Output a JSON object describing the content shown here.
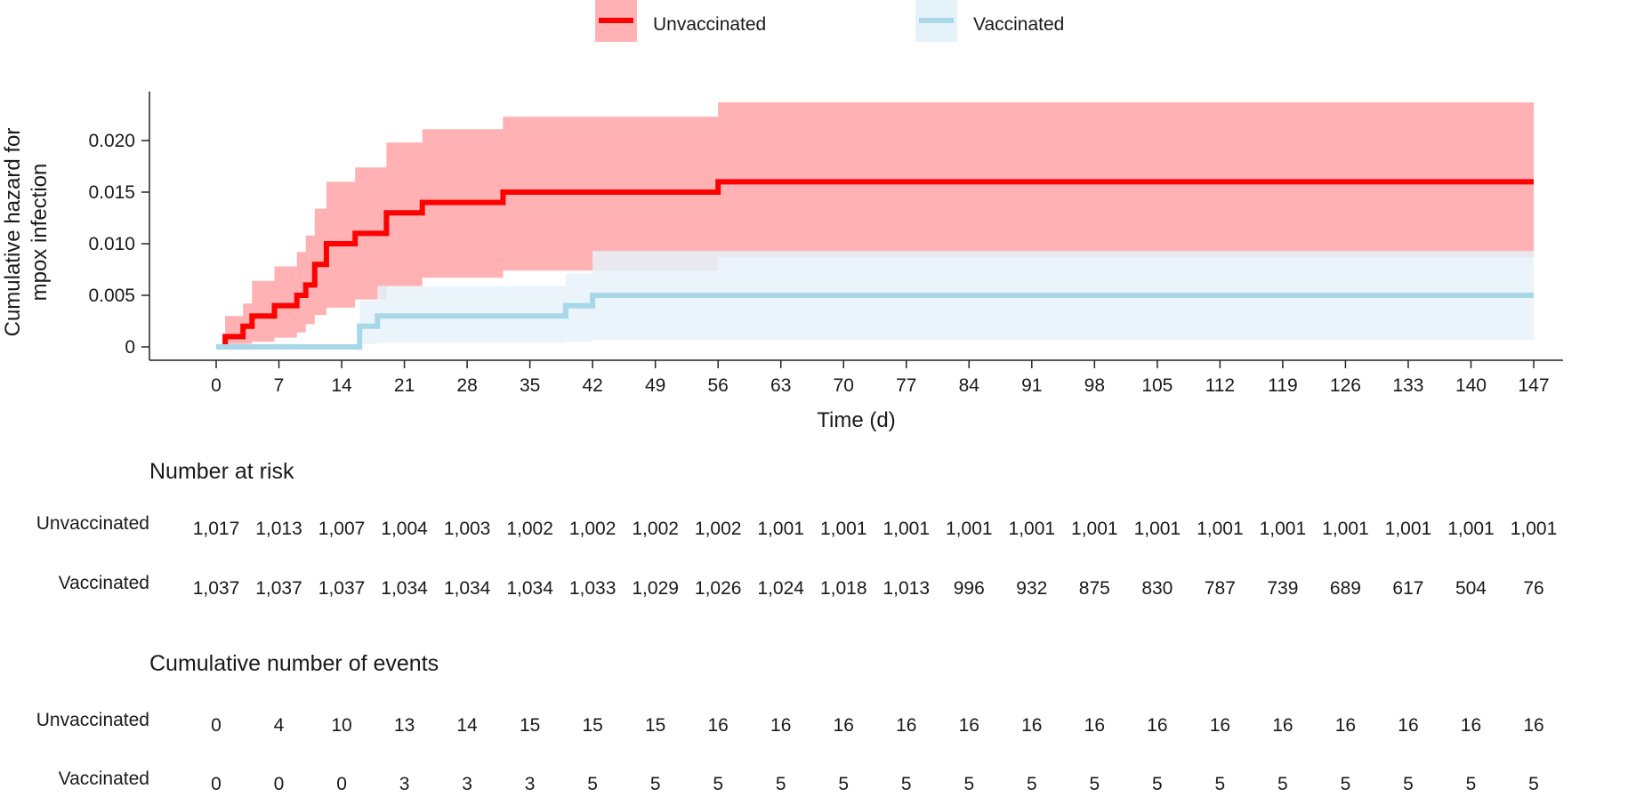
{
  "chart_data": {
    "type": "line",
    "subtype": "step-with-confidence-band",
    "xlabel": "Time (d)",
    "ylabel": [
      "Cumulative hazard for",
      "mpox infection"
    ],
    "xlim": [
      0,
      147
    ],
    "ylim": [
      0,
      0.0245
    ],
    "x_ticks": [
      0,
      7,
      14,
      21,
      28,
      35,
      42,
      49,
      56,
      63,
      70,
      77,
      84,
      91,
      98,
      105,
      112,
      119,
      126,
      133,
      140,
      147
    ],
    "x_tick_labels": [
      "0",
      "7",
      "14",
      "21",
      "28",
      "35",
      "42",
      "49",
      "56",
      "63",
      "70",
      "77",
      "84",
      "91",
      "98",
      "105",
      "112",
      "119",
      "126",
      "133",
      "140",
      "147"
    ],
    "y_ticks": [
      0,
      0.005,
      0.01,
      0.015,
      0.02
    ],
    "y_tick_labels": [
      "0",
      "0.005",
      "0.010",
      "0.015",
      "0.020"
    ],
    "grid": false,
    "legend_position": "top-center",
    "series": [
      {
        "name": "Unvaccinated",
        "color": "#ff0000",
        "band_color": "#ffb1b3",
        "steps": [
          [
            1,
            0.001
          ],
          [
            3,
            0.002
          ],
          [
            4,
            0.003
          ],
          [
            6.5,
            0.004
          ],
          [
            9,
            0.005
          ],
          [
            10,
            0.006
          ],
          [
            11,
            0.008
          ],
          [
            12.3,
            0.01
          ],
          [
            15.5,
            0.011
          ],
          [
            19,
            0.013
          ],
          [
            23,
            0.014
          ],
          [
            32,
            0.015
          ],
          [
            56,
            0.016
          ],
          [
            147,
            0.016
          ]
        ],
        "band": [
          [
            1,
            0.0001,
            0.003
          ],
          [
            3,
            0.0003,
            0.0042
          ],
          [
            4,
            0.0005,
            0.0064
          ],
          [
            6.5,
            0.0009,
            0.0078
          ],
          [
            9,
            0.0014,
            0.0092
          ],
          [
            10,
            0.0022,
            0.0108
          ],
          [
            11,
            0.0031,
            0.0134
          ],
          [
            12.3,
            0.0038,
            0.016
          ],
          [
            15.5,
            0.0046,
            0.0174
          ],
          [
            19,
            0.0059,
            0.0198
          ],
          [
            23,
            0.0067,
            0.0211
          ],
          [
            32,
            0.0074,
            0.0223
          ],
          [
            56,
            0.0087,
            0.0237
          ],
          [
            147,
            0.0087,
            0.0237
          ]
        ]
      },
      {
        "name": "Vaccinated",
        "color": "#a8d8e8",
        "band_color": "#e6f2f9",
        "steps": [
          [
            0,
            0
          ],
          [
            16,
            0.002
          ],
          [
            18,
            0.003
          ],
          [
            39,
            0.004
          ],
          [
            42,
            0.005
          ],
          [
            147,
            0.005
          ]
        ],
        "band": [
          [
            0,
            0,
            0.0003
          ],
          [
            16,
            0.0003,
            0.0045
          ],
          [
            18,
            0.0004,
            0.0059
          ],
          [
            39,
            0.0005,
            0.0071
          ],
          [
            42,
            0.0007,
            0.0093
          ],
          [
            147,
            0.0007,
            0.0093
          ]
        ]
      }
    ]
  },
  "risk_table": {
    "title": "Number at risk",
    "rows": [
      {
        "label": "Unvaccinated",
        "values": [
          "1,017",
          "1,013",
          "1,007",
          "1,004",
          "1,003",
          "1,002",
          "1,002",
          "1,002",
          "1,002",
          "1,001",
          "1,001",
          "1,001",
          "1,001",
          "1,001",
          "1,001",
          "1,001",
          "1,001",
          "1,001",
          "1,001",
          "1,001",
          "1,001",
          "1,001"
        ]
      },
      {
        "label": "Vaccinated",
        "values": [
          "1,037",
          "1,037",
          "1,037",
          "1,034",
          "1,034",
          "1,034",
          "1,033",
          "1,029",
          "1,026",
          "1,024",
          "1,018",
          "1,013",
          "996",
          "932",
          "875",
          "830",
          "787",
          "739",
          "689",
          "617",
          "504",
          "76"
        ]
      }
    ]
  },
  "events_table": {
    "title": "Cumulative number of events",
    "rows": [
      {
        "label": "Unvaccinated",
        "values": [
          "0",
          "4",
          "10",
          "13",
          "14",
          "15",
          "15",
          "15",
          "16",
          "16",
          "16",
          "16",
          "16",
          "16",
          "16",
          "16",
          "16",
          "16",
          "16",
          "16",
          "16",
          "16"
        ]
      },
      {
        "label": "Vaccinated",
        "values": [
          "0",
          "0",
          "0",
          "3",
          "3",
          "3",
          "5",
          "5",
          "5",
          "5",
          "5",
          "5",
          "5",
          "5",
          "5",
          "5",
          "5",
          "5",
          "5",
          "5",
          "5",
          "5"
        ]
      }
    ]
  }
}
